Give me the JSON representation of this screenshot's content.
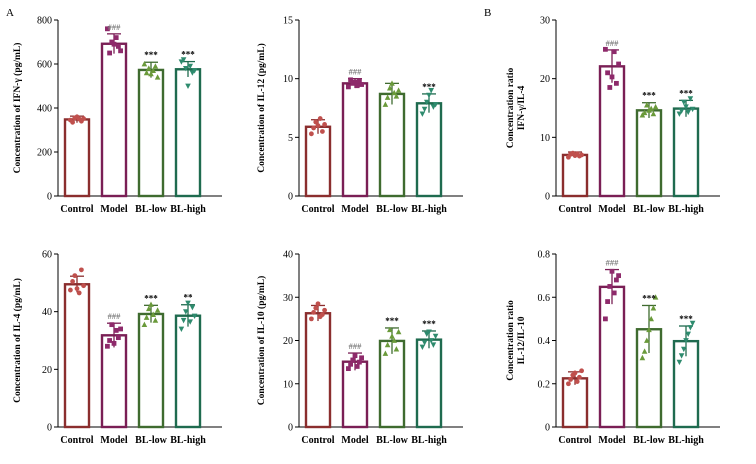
{
  "panel_labels": [
    "A",
    "B"
  ],
  "categories": [
    "Control",
    "Model",
    "BL-low",
    "BL-high"
  ],
  "colors": {
    "control": "#8b2e2e",
    "model": "#7a1f55",
    "bl_low": "#3f6b2f",
    "bl_high": "#1f6b4f",
    "point_control": "#c0504d",
    "point_model": "#8e2a6b",
    "point_bl_low": "#6a9a3a",
    "point_bl_high": "#2e8b6e"
  },
  "chart_data": [
    {
      "type": "bar",
      "ylabel": "Concentration of IFN-γ (pg/mL)",
      "ylim": [
        0,
        800
      ],
      "yticks": [
        0,
        200,
        400,
        600,
        800
      ],
      "categories": [
        "Control",
        "Model",
        "BL-low",
        "BL-high"
      ],
      "values": [
        348,
        692,
        573,
        576
      ],
      "errors": [
        15,
        45,
        35,
        35
      ],
      "points": [
        [
          345,
          335,
          355,
          360,
          350,
          340,
          352
        ],
        [
          760,
          650,
          700,
          690,
          720,
          680,
          660
        ],
        [
          600,
          560,
          580,
          555,
          570,
          590,
          540
        ],
        [
          610,
          620,
          580,
          500,
          590,
          560,
          570
        ]
      ],
      "significance": [
        "",
        "###",
        "***",
        "***"
      ]
    },
    {
      "type": "bar",
      "ylabel": "Concentration of IL-12 (pg/mL)",
      "ylim": [
        0,
        15
      ],
      "yticks": [
        0,
        5,
        10,
        15
      ],
      "categories": [
        "Control",
        "Model",
        "BL-low",
        "BL-high"
      ],
      "values": [
        5.9,
        9.6,
        8.7,
        7.9
      ],
      "errors": [
        0.6,
        0.4,
        0.9,
        0.8
      ],
      "points": [
        [
          5.3,
          5.8,
          6.3,
          6.0,
          6.6,
          5.5,
          6.1
        ],
        [
          9.3,
          9.9,
          9.6,
          9.7,
          9.4,
          9.8,
          9.5
        ],
        [
          7.8,
          8.4,
          9.2,
          9.6,
          8.8,
          8.5,
          9.0
        ],
        [
          7.0,
          7.4,
          8.0,
          8.6,
          9.0,
          7.6,
          7.8
        ]
      ],
      "significance": [
        "",
        "###",
        "",
        "***"
      ]
    },
    {
      "type": "bar",
      "ylabel": "Concentration ratio IFN-γ/IL-4",
      "ylim": [
        0,
        30
      ],
      "yticks": [
        0,
        10,
        20,
        30
      ],
      "categories": [
        "Control",
        "Model",
        "BL-low",
        "BL-high"
      ],
      "values": [
        7.0,
        22.1,
        14.6,
        14.9
      ],
      "errors": [
        0.5,
        2.8,
        1.3,
        1.4
      ],
      "points": [
        [
          6.6,
          7.1,
          7.3,
          6.9,
          7.2,
          6.8,
          7.0
        ],
        [
          25.0,
          21.0,
          18.5,
          20.3,
          24.6,
          19.2,
          22.5
        ],
        [
          13.8,
          14.2,
          15.5,
          14.6,
          14.9,
          14.0,
          15.2
        ],
        [
          14.0,
          14.5,
          16.0,
          15.2,
          14.3,
          16.6,
          14.8
        ]
      ],
      "significance": [
        "",
        "###",
        "***",
        "***"
      ]
    },
    {
      "type": "bar",
      "ylabel": "Concentration of IL-4 (pg/mL)",
      "ylim": [
        0,
        60
      ],
      "yticks": [
        0,
        20,
        40,
        60
      ],
      "categories": [
        "Control",
        "Model",
        "BL-low",
        "BL-high"
      ],
      "values": [
        49.5,
        31.8,
        39.2,
        38.6
      ],
      "errors": [
        2.8,
        4.2,
        3.0,
        3.8
      ],
      "points": [
        [
          47.5,
          50.5,
          52.5,
          48.0,
          46.5,
          54.5,
          49.0
        ],
        [
          28.0,
          30.0,
          35.5,
          29.0,
          33.5,
          31.0,
          34.0
        ],
        [
          35.5,
          38.0,
          41.0,
          42.5,
          39.0,
          37.0,
          40.5
        ],
        [
          34.0,
          37.0,
          40.0,
          43.0,
          36.5,
          41.5,
          38.5
        ]
      ],
      "significance": [
        "",
        "###",
        "***",
        "**"
      ]
    },
    {
      "type": "bar",
      "ylabel": "Concentration of IL-10 (pg/mL)",
      "ylim": [
        0,
        40
      ],
      "yticks": [
        0,
        10,
        20,
        30,
        40
      ],
      "categories": [
        "Control",
        "Model",
        "BL-low",
        "BL-high"
      ],
      "values": [
        26.3,
        15.1,
        19.9,
        20.2
      ],
      "errors": [
        1.8,
        2.0,
        3.0,
        2.0
      ],
      "points": [
        [
          25.0,
          26.5,
          27.5,
          28.5,
          25.5,
          26.0,
          27.0
        ],
        [
          13.5,
          14.5,
          15.5,
          16.5,
          14.0,
          15.0,
          16.0
        ],
        [
          17.0,
          19.0,
          22.5,
          21.0,
          20.0,
          18.0,
          22.0
        ],
        [
          18.5,
          19.5,
          21.5,
          22.0,
          20.0,
          19.0,
          21.0
        ]
      ],
      "significance": [
        "",
        "###",
        "***",
        "***"
      ]
    },
    {
      "type": "bar",
      "ylabel": "Concentration ratio IL-12/IL-10",
      "ylim": [
        0,
        0.8
      ],
      "yticks": [
        0,
        0.2,
        0.4,
        0.6,
        0.8
      ],
      "categories": [
        "Control",
        "Model",
        "BL-low",
        "BL-high"
      ],
      "values": [
        0.225,
        0.648,
        0.452,
        0.397
      ],
      "errors": [
        0.03,
        0.08,
        0.11,
        0.07
      ],
      "points": [
        [
          0.2,
          0.22,
          0.24,
          0.25,
          0.21,
          0.23,
          0.26
        ],
        [
          0.5,
          0.58,
          0.65,
          0.72,
          0.62,
          0.68,
          0.7
        ],
        [
          0.32,
          0.35,
          0.4,
          0.45,
          0.5,
          0.55,
          0.6
        ],
        [
          0.3,
          0.33,
          0.36,
          0.4,
          0.43,
          0.46,
          0.48
        ]
      ],
      "significance": [
        "",
        "###",
        "***",
        "***"
      ]
    }
  ]
}
